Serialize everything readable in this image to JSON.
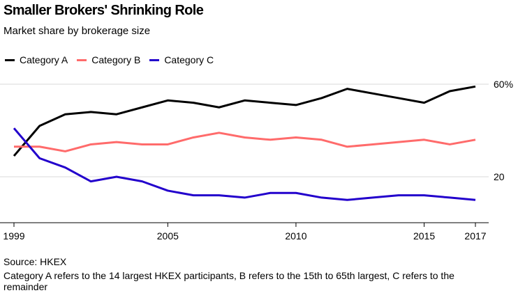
{
  "chart_data": {
    "type": "line",
    "title": "Smaller Brokers' Shrinking Role",
    "subtitle": "Market share by brokerage size",
    "x": [
      1999,
      2000,
      2001,
      2002,
      2003,
      2004,
      2005,
      2006,
      2007,
      2008,
      2009,
      2010,
      2011,
      2012,
      2013,
      2014,
      2015,
      2016,
      2017
    ],
    "x_ticks": [
      "1999",
      "2005",
      "2010",
      "2015",
      "2017"
    ],
    "y_ticks": [
      "60%",
      "20"
    ],
    "ylim": [
      0,
      70
    ],
    "grid": true,
    "legend_position": "top-left",
    "series": [
      {
        "name": "Category A",
        "color": "#000000",
        "values": [
          29,
          42,
          47,
          48,
          47,
          50,
          53,
          52,
          50,
          53,
          52,
          51,
          54,
          58,
          56,
          54,
          52,
          57,
          59
        ]
      },
      {
        "name": "Category B",
        "color": "#ff6b6b",
        "values": [
          33,
          33,
          31,
          34,
          35,
          34,
          34,
          37,
          39,
          37,
          36,
          37,
          36,
          33,
          34,
          35,
          36,
          34,
          36
        ]
      },
      {
        "name": "Category C",
        "color": "#2200cc",
        "values": [
          41,
          28,
          24,
          18,
          20,
          18,
          14,
          12,
          12,
          11,
          13,
          13,
          11,
          10,
          11,
          12,
          12,
          11,
          10
        ]
      }
    ]
  },
  "source": "Source: HKEX",
  "note": "Category A refers to the 14 largest HKEX participants, B refers to the 15th to 65th largest, C refers to the remainder"
}
